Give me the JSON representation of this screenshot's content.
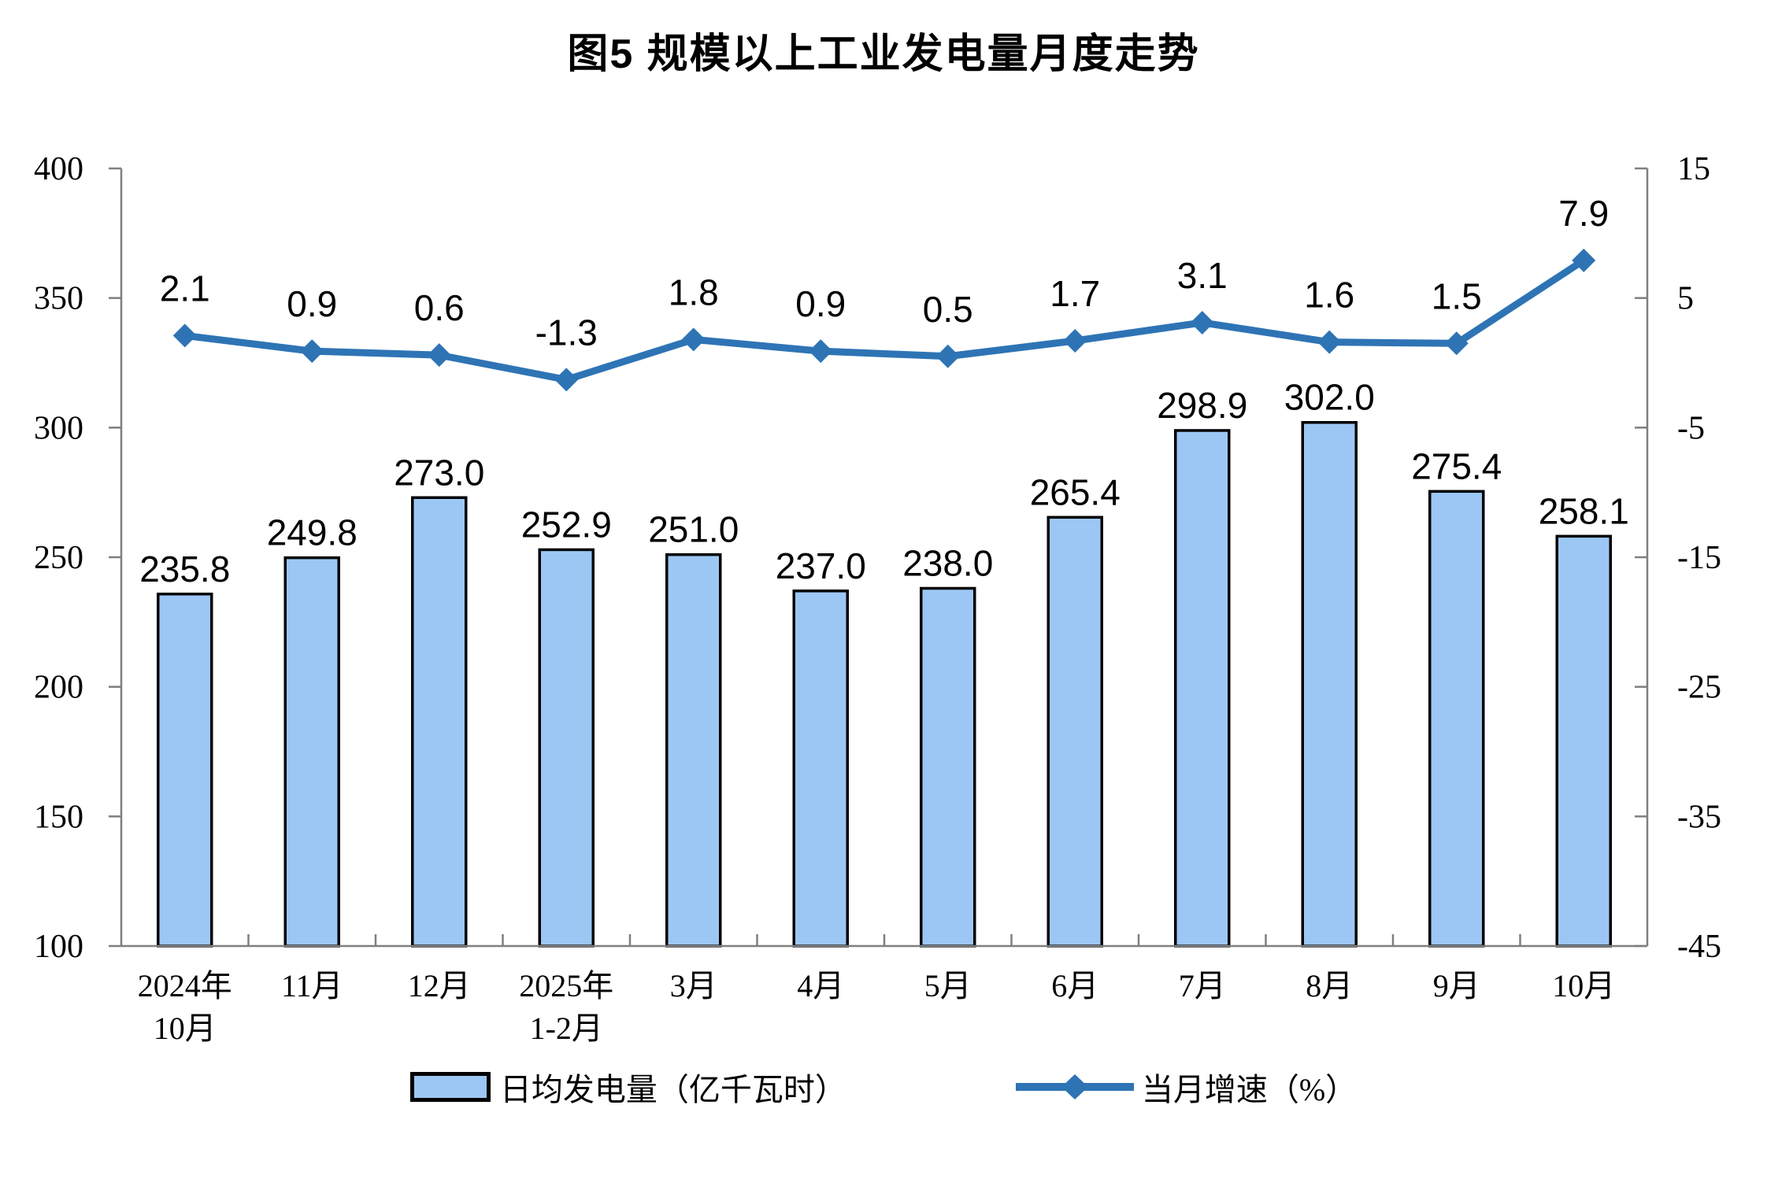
{
  "title": "图5  规模以上工业发电量月度走势",
  "chart_data": {
    "type": "combo-bar-line",
    "title": "图5  规模以上工业发电量月度走势",
    "categories": [
      [
        "2024年",
        "10月"
      ],
      [
        "11月",
        ""
      ],
      [
        "12月",
        ""
      ],
      [
        "2025年",
        "1-2月"
      ],
      [
        "3月",
        ""
      ],
      [
        "4月",
        ""
      ],
      [
        "5月",
        ""
      ],
      [
        "6月",
        ""
      ],
      [
        "7月",
        ""
      ],
      [
        "8月",
        ""
      ],
      [
        "9月",
        ""
      ],
      [
        "10月",
        ""
      ]
    ],
    "series": [
      {
        "name": "日均发电量（亿千瓦时）",
        "type": "bar",
        "axis": "left",
        "color": "#9CC7F5",
        "border_color": "#000000",
        "values": [
          235.8,
          249.8,
          273.0,
          252.9,
          251.0,
          237.0,
          238.0,
          265.4,
          298.9,
          302.0,
          275.4,
          258.1
        ],
        "labels": [
          "235.8",
          "249.8",
          "273.0",
          "252.9",
          "251.0",
          "237.0",
          "238.0",
          "265.4",
          "298.9",
          "302.0",
          "275.4",
          "258.1"
        ]
      },
      {
        "name": "当月增速（%）",
        "type": "line",
        "axis": "right",
        "color": "#2E74B5",
        "marker": "diamond",
        "values": [
          2.1,
          0.9,
          0.6,
          -1.3,
          1.8,
          0.9,
          0.5,
          1.7,
          3.1,
          1.6,
          1.5,
          7.9
        ],
        "labels": [
          "2.1",
          "0.9",
          "0.6",
          "-1.3",
          "1.8",
          "0.9",
          "0.5",
          "1.7",
          "3.1",
          "1.6",
          "1.5",
          "7.9"
        ]
      }
    ],
    "left_axis": {
      "min": 100,
      "max": 400,
      "step": 50,
      "tick_labels": [
        "400",
        "350",
        "300",
        "250",
        "200",
        "150",
        "100"
      ]
    },
    "right_axis": {
      "min": -45,
      "max": 15,
      "step": 10,
      "tick_labels": [
        "15",
        "5",
        "-5",
        "-15",
        "-25",
        "-35",
        "-45"
      ]
    },
    "axis_color": "#7F7F7F",
    "text_color": "#000000",
    "background": "#FFFFFF",
    "grid": false,
    "legend_position": "bottom"
  },
  "legend": {
    "bar_label": "日均发电量（亿千瓦时）",
    "line_label": "当月增速（%）"
  }
}
